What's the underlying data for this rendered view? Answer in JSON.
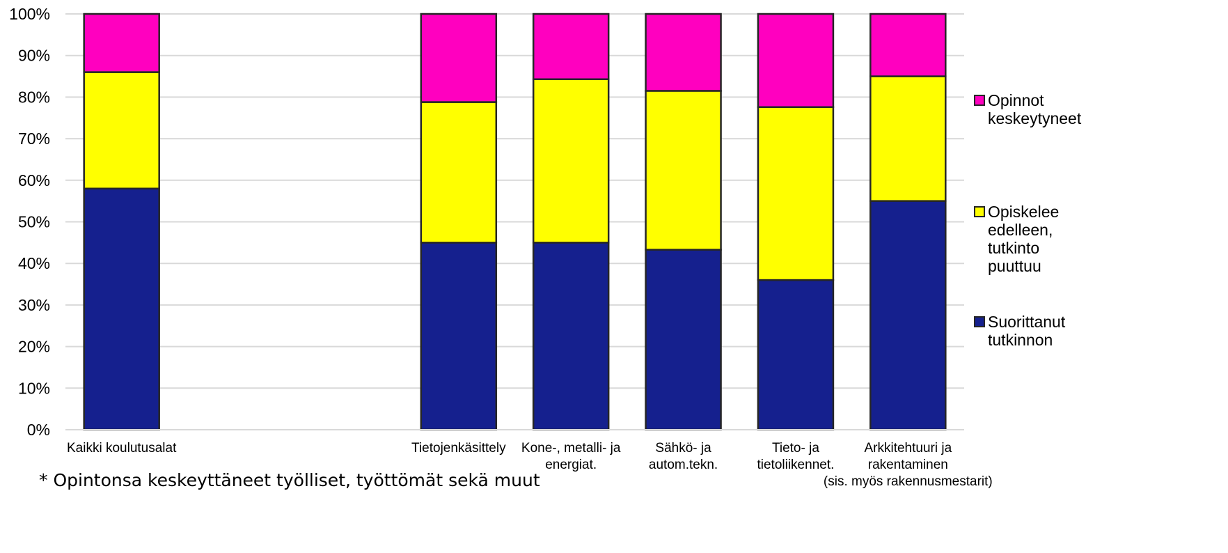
{
  "chart_data": {
    "type": "bar",
    "stacked": true,
    "percent": true,
    "categories": [
      [
        "Kaikki koulutusalat"
      ],
      [],
      [],
      [
        "Tietojenkäsittely"
      ],
      [
        "Kone-, metalli- ja",
        "energiat."
      ],
      [
        "Sähkö- ja",
        "autom.tekn."
      ],
      [
        "Tieto- ja",
        "tietoliikennet."
      ],
      [
        "Arkkitehtuuri ja",
        "rakentaminen",
        "(sis. myös rakennusmestarit)"
      ]
    ],
    "series": [
      {
        "name": "Suorittanut tutkinnon",
        "legend_lines": [
          "Suorittanut",
          "tutkinnon"
        ],
        "color": "#15208E",
        "values": [
          58,
          null,
          null,
          45,
          45,
          43.3,
          36,
          55
        ]
      },
      {
        "name": "Opiskelee edelleen, tutkinto puuttuu",
        "legend_lines": [
          "Opiskelee",
          "edelleen,",
          "tutkinto",
          "puuttuu"
        ],
        "color": "#FFFF00",
        "values": [
          28,
          null,
          null,
          33.8,
          39.3,
          38.2,
          41.6,
          30
        ]
      },
      {
        "name": "Opinnot keskeytyneet",
        "legend_lines": [
          "Opinnot",
          "keskeytyneet"
        ],
        "color": "#FF00BF",
        "values": [
          14,
          null,
          null,
          21.2,
          15.7,
          18.5,
          22.4,
          15
        ]
      }
    ],
    "ylim": [
      0,
      100
    ],
    "yticks": [
      "0%",
      "10%",
      "20%",
      "30%",
      "40%",
      "50%",
      "60%",
      "70%",
      "80%",
      "90%",
      "100%"
    ],
    "grid": true,
    "legend_position": "right",
    "footnote": "* Opintonsa keskeyttäneet työlliset, työttömät sekä muut"
  }
}
